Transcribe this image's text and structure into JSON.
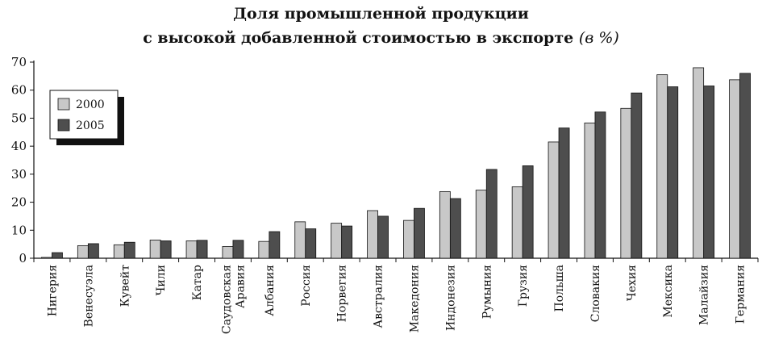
{
  "chart_data": {
    "type": "bar",
    "title_line1": "Доля промышленной продукции",
    "title_line2": "с высокой добавленной стоимостью в экспорте",
    "title_unit": "(в %)",
    "ylim": [
      0,
      70
    ],
    "yticks": [
      0,
      10,
      20,
      30,
      40,
      50,
      60,
      70
    ],
    "categories": [
      [
        "Нигерия"
      ],
      [
        "Венесуэла"
      ],
      [
        "Кувейт"
      ],
      [
        "Чили"
      ],
      [
        "Катар"
      ],
      [
        "Саудовская",
        "Аравия"
      ],
      [
        "Албания"
      ],
      [
        "Россия"
      ],
      [
        "Норвегия"
      ],
      [
        "Австралия"
      ],
      [
        "Македония"
      ],
      [
        "Индонезия"
      ],
      [
        "Румыния"
      ],
      [
        "Грузия"
      ],
      [
        "Польша"
      ],
      [
        "Словакия"
      ],
      [
        "Чехия"
      ],
      [
        "Мексика"
      ],
      [
        "Малайзия"
      ],
      [
        "Германия"
      ]
    ],
    "series": [
      {
        "name": "2000",
        "color": "#c8c8c8",
        "values": [
          0.3,
          4.5,
          4.8,
          6.5,
          6.2,
          4.2,
          6.0,
          13.0,
          12.5,
          17.0,
          13.5,
          23.8,
          24.3,
          25.5,
          41.5,
          48.3,
          53.5,
          65.5,
          68.0,
          63.7
        ]
      },
      {
        "name": "2005",
        "color": "#4e4e4e",
        "values": [
          2.0,
          5.2,
          5.7,
          6.2,
          6.4,
          6.4,
          9.5,
          10.5,
          11.5,
          15.0,
          17.8,
          21.3,
          31.7,
          33.0,
          46.5,
          52.2,
          59.0,
          61.2,
          61.5,
          66.0
        ]
      }
    ],
    "legend": "top-left",
    "grid": false
  }
}
